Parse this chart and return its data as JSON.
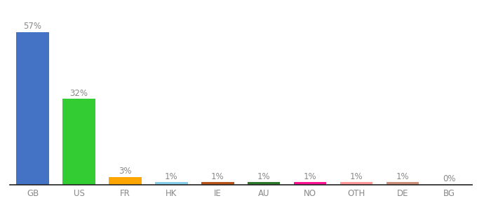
{
  "categories": [
    "GB",
    "US",
    "FR",
    "HK",
    "IE",
    "AU",
    "NO",
    "OTH",
    "DE",
    "BG"
  ],
  "values": [
    57,
    32,
    3,
    1,
    1,
    1,
    1,
    1,
    1,
    0
  ],
  "bar_colors": [
    "#4472C4",
    "#33CC33",
    "#FFA500",
    "#87CEEB",
    "#B8541A",
    "#2D7A2D",
    "#FF1493",
    "#FF9999",
    "#CD8E7A",
    "#FFFFFF"
  ],
  "bar_labels": [
    "57%",
    "32%",
    "3%",
    "1%",
    "1%",
    "1%",
    "1%",
    "1%",
    "1%",
    "0%"
  ],
  "background_color": "#ffffff",
  "ylim": [
    0,
    65
  ],
  "label_fontsize": 8.5,
  "tick_fontsize": 8.5,
  "label_color": "#888888"
}
